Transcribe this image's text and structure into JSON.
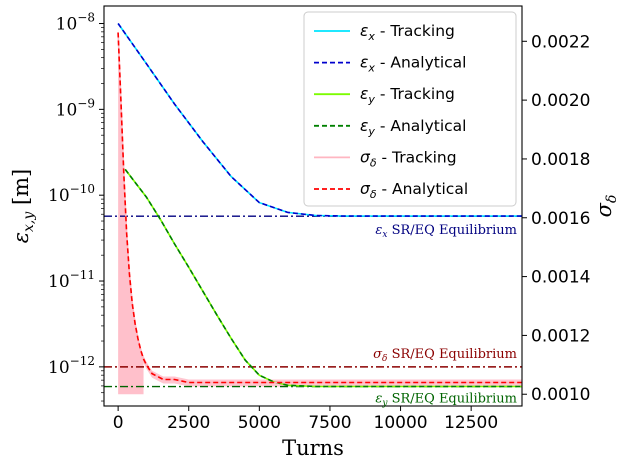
{
  "chart_data": {
    "type": "line",
    "xlabel": "Turns",
    "ylabel_left": "ε_x,y [m]",
    "ylabel_right": "σ_δ",
    "xlim": [
      -500,
      14300
    ],
    "ylim_left": [
      3.5e-13,
      1.6e-08
    ],
    "yscale_left": "log",
    "ylim_right": [
      0.00096,
      0.00232
    ],
    "xticks": [
      0,
      2500,
      5000,
      7500,
      10000,
      12500
    ],
    "xtick_labels": [
      "0",
      "2500",
      "5000",
      "7500",
      "10000",
      "12500"
    ],
    "yticks_left": [
      1e-12,
      1e-11,
      1e-10,
      1e-09,
      1e-08
    ],
    "yticks_left_labels": [
      {
        "base": "10",
        "exp": "−12"
      },
      {
        "base": "10",
        "exp": "−11"
      },
      {
        "base": "10",
        "exp": "−10"
      },
      {
        "base": "10",
        "exp": "−9"
      },
      {
        "base": "10",
        "exp": "−8"
      }
    ],
    "yticks_right": [
      0.001,
      0.0012,
      0.0014,
      0.0016,
      0.0018,
      0.002,
      0.0022
    ],
    "yticks_right_labels": [
      "0.0010",
      "0.0012",
      "0.0014",
      "0.0016",
      "0.0018",
      "0.0020",
      "0.0022"
    ],
    "legend": {
      "placement": "top-right",
      "entries": [
        {
          "label": "ε_x - Tracking",
          "sym": "ε",
          "sub": "x",
          "rest": " - Tracking",
          "color": "#00e5ff",
          "dash": "solid"
        },
        {
          "label": "ε_x - Analytical",
          "sym": "ε",
          "sub": "x",
          "rest": " - Analytical",
          "color": "#0000cd",
          "dash": "dashed"
        },
        {
          "label": "ε_y - Tracking",
          "sym": "ε",
          "sub": "y",
          "rest": " - Tracking",
          "color": "#7cfc00",
          "dash": "solid"
        },
        {
          "label": "ε_y - Analytical",
          "sym": "ε",
          "sub": "y",
          "rest": " - Analytical",
          "color": "#008000",
          "dash": "dashed"
        },
        {
          "label": "σ_δ - Tracking",
          "sym": "σ",
          "sub": "δ",
          "rest": " - Tracking",
          "color": "#ffb6c1",
          "dash": "solid"
        },
        {
          "label": "σ_δ - Analytical",
          "sym": "σ",
          "sub": "δ",
          "rest": " - Analytical",
          "color": "#ff0000",
          "dash": "dashed"
        }
      ]
    },
    "series": [
      {
        "name": "ε_x - Tracking",
        "axis": "left",
        "x": [
          0,
          1000,
          2000,
          3000,
          4000,
          5000,
          6000,
          7000,
          8000,
          10000,
          14300
        ],
        "y": [
          1e-08,
          3.4e-09,
          1.15e-09,
          4.2e-10,
          1.65e-10,
          8.2e-11,
          6.3e-11,
          5.8e-11,
          5.7e-11,
          5.7e-11,
          5.7e-11
        ]
      },
      {
        "name": "ε_x - Analytical",
        "axis": "left",
        "x": [
          0,
          1000,
          2000,
          3000,
          4000,
          5000,
          6000,
          7000,
          8000,
          10000,
          14300
        ],
        "y": [
          1e-08,
          3.4e-09,
          1.15e-09,
          4.2e-10,
          1.65e-10,
          8.2e-11,
          6.3e-11,
          5.8e-11,
          5.7e-11,
          5.7e-11,
          5.7e-11
        ]
      },
      {
        "name": "ε_y - Tracking",
        "axis": "left",
        "x": [
          250,
          1000,
          1500,
          2000,
          2500,
          3000,
          3500,
          4000,
          4500,
          5000,
          5500,
          6000,
          7000,
          8000,
          10000,
          14300
        ],
        "y": [
          2e-10,
          9.5e-11,
          5.2e-11,
          2.7e-11,
          1.45e-11,
          7.6e-12,
          4e-12,
          2.15e-12,
          1.2e-12,
          8e-13,
          6.7e-13,
          6.1e-13,
          5.9e-13,
          5.9e-13,
          5.9e-13,
          5.9e-13
        ]
      },
      {
        "name": "ε_y - Analytical",
        "axis": "left",
        "x": [
          250,
          1000,
          1500,
          2000,
          2500,
          3000,
          3500,
          4000,
          4500,
          5000,
          5500,
          6000,
          7000,
          8000,
          10000,
          14300
        ],
        "y": [
          2e-10,
          9.5e-11,
          5.2e-11,
          2.7e-11,
          1.45e-11,
          7.6e-12,
          4e-12,
          2.15e-12,
          1.2e-12,
          8e-13,
          6.7e-13,
          6.1e-13,
          5.9e-13,
          5.9e-13,
          5.9e-13,
          5.9e-13
        ]
      },
      {
        "name": "σ_δ - Tracking",
        "axis": "right",
        "x": [
          0,
          100,
          200,
          300,
          400,
          500,
          600,
          700,
          800,
          900,
          1000,
          1200,
          1400,
          1600,
          1800,
          2000,
          2500,
          3000,
          4000,
          5000,
          7500,
          10000,
          12500,
          14300
        ],
        "y": [
          0.00223,
          0.002,
          0.00175,
          0.00155,
          0.00141,
          0.00131,
          0.00124,
          0.00119,
          0.00115,
          0.00112,
          0.0011,
          0.00107,
          0.00106,
          0.00105,
          0.00105,
          0.00105,
          0.00104,
          0.00104,
          0.00104,
          0.00104,
          0.00104,
          0.00104,
          0.00104,
          0.00104
        ]
      },
      {
        "name": "σ_δ - Analytical",
        "axis": "right",
        "x": [
          0,
          100,
          200,
          300,
          400,
          500,
          600,
          700,
          800,
          900,
          1000,
          1200,
          1400,
          1600,
          1800,
          2000,
          2500,
          3000,
          4000,
          5000,
          7500,
          10000,
          12500,
          14300
        ],
        "y": [
          0.00223,
          0.002,
          0.00175,
          0.00155,
          0.00141,
          0.00131,
          0.00124,
          0.00119,
          0.00115,
          0.00112,
          0.0011,
          0.00107,
          0.00106,
          0.00105,
          0.00105,
          0.00105,
          0.00104,
          0.00104,
          0.00104,
          0.00104,
          0.00104,
          0.00104,
          0.00104,
          0.00104
        ]
      }
    ],
    "equilibrium_lines": [
      {
        "axis": "left",
        "value": 5.7e-11,
        "color": "#000080",
        "annotation": {
          "label": "ε_x SR/EQ Equilibrium",
          "sym": "ε",
          "sub": "x",
          "rest": " SR/EQ Equilibrium"
        }
      },
      {
        "axis": "left",
        "value": 1e-12,
        "color": "#8b0000",
        "annotation": {
          "label": "σ_δ SR/EQ Equilibrium",
          "sym": "σ",
          "sub": "δ",
          "rest": " SR/EQ Equilibrium"
        }
      },
      {
        "axis": "left",
        "value": 5.9e-13,
        "color": "#006400",
        "annotation": {
          "label": "ε_y SR/EQ Equilibrium",
          "sym": "ε",
          "sub": "y",
          "rest": " SR/EQ Equilibrium"
        }
      }
    ]
  }
}
